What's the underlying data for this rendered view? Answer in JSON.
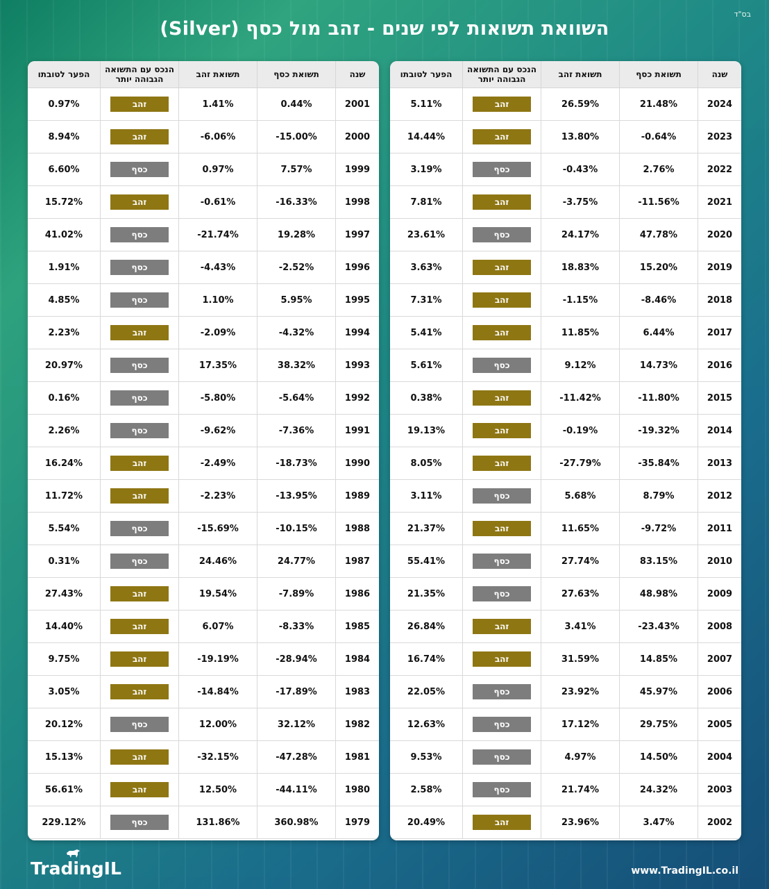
{
  "header": {
    "bsd": "בס\"ד",
    "title": "השוואת תשואות לפי שנים - זהב מול כסף (Silver)"
  },
  "columns": {
    "year": "שנה",
    "silver": "תשואת כסף",
    "gold": "תשואת זהב",
    "winner": "הנכס עם התשואה הגבוהה יותר",
    "gap": "הפער לטובתו"
  },
  "right_table": [
    {
      "year": "2024",
      "silver": "21.48%",
      "gold": "26.59%",
      "winner": "זהב",
      "gap": "5.11%"
    },
    {
      "year": "2023",
      "silver": "-0.64%",
      "gold": "13.80%",
      "winner": "זהב",
      "gap": "14.44%"
    },
    {
      "year": "2022",
      "silver": "2.76%",
      "gold": "-0.43%",
      "winner": "כסף",
      "gap": "3.19%"
    },
    {
      "year": "2021",
      "silver": "-11.56%",
      "gold": "-3.75%",
      "winner": "זהב",
      "gap": "7.81%"
    },
    {
      "year": "2020",
      "silver": "47.78%",
      "gold": "24.17%",
      "winner": "כסף",
      "gap": "23.61%"
    },
    {
      "year": "2019",
      "silver": "15.20%",
      "gold": "18.83%",
      "winner": "זהב",
      "gap": "3.63%"
    },
    {
      "year": "2018",
      "silver": "-8.46%",
      "gold": "-1.15%",
      "winner": "זהב",
      "gap": "7.31%"
    },
    {
      "year": "2017",
      "silver": "6.44%",
      "gold": "11.85%",
      "winner": "זהב",
      "gap": "5.41%"
    },
    {
      "year": "2016",
      "silver": "14.73%",
      "gold": "9.12%",
      "winner": "כסף",
      "gap": "5.61%"
    },
    {
      "year": "2015",
      "silver": "-11.80%",
      "gold": "-11.42%",
      "winner": "זהב",
      "gap": "0.38%"
    },
    {
      "year": "2014",
      "silver": "-19.32%",
      "gold": "-0.19%",
      "winner": "זהב",
      "gap": "19.13%"
    },
    {
      "year": "2013",
      "silver": "-35.84%",
      "gold": "-27.79%",
      "winner": "זהב",
      "gap": "8.05%"
    },
    {
      "year": "2012",
      "silver": "8.79%",
      "gold": "5.68%",
      "winner": "כסף",
      "gap": "3.11%"
    },
    {
      "year": "2011",
      "silver": "-9.72%",
      "gold": "11.65%",
      "winner": "זהב",
      "gap": "21.37%"
    },
    {
      "year": "2010",
      "silver": "83.15%",
      "gold": "27.74%",
      "winner": "כסף",
      "gap": "55.41%"
    },
    {
      "year": "2009",
      "silver": "48.98%",
      "gold": "27.63%",
      "winner": "כסף",
      "gap": "21.35%"
    },
    {
      "year": "2008",
      "silver": "-23.43%",
      "gold": "3.41%",
      "winner": "זהב",
      "gap": "26.84%"
    },
    {
      "year": "2007",
      "silver": "14.85%",
      "gold": "31.59%",
      "winner": "זהב",
      "gap": "16.74%"
    },
    {
      "year": "2006",
      "silver": "45.97%",
      "gold": "23.92%",
      "winner": "כסף",
      "gap": "22.05%"
    },
    {
      "year": "2005",
      "silver": "29.75%",
      "gold": "17.12%",
      "winner": "כסף",
      "gap": "12.63%"
    },
    {
      "year": "2004",
      "silver": "14.50%",
      "gold": "4.97%",
      "winner": "כסף",
      "gap": "9.53%"
    },
    {
      "year": "2003",
      "silver": "24.32%",
      "gold": "21.74%",
      "winner": "כסף",
      "gap": "2.58%"
    },
    {
      "year": "2002",
      "silver": "3.47%",
      "gold": "23.96%",
      "winner": "זהב",
      "gap": "20.49%"
    }
  ],
  "left_table": [
    {
      "year": "2001",
      "silver": "0.44%",
      "gold": "1.41%",
      "winner": "זהב",
      "gap": "0.97%"
    },
    {
      "year": "2000",
      "silver": "-15.00%",
      "gold": "-6.06%",
      "winner": "זהב",
      "gap": "8.94%"
    },
    {
      "year": "1999",
      "silver": "7.57%",
      "gold": "0.97%",
      "winner": "כסף",
      "gap": "6.60%"
    },
    {
      "year": "1998",
      "silver": "-16.33%",
      "gold": "-0.61%",
      "winner": "זהב",
      "gap": "15.72%"
    },
    {
      "year": "1997",
      "silver": "19.28%",
      "gold": "-21.74%",
      "winner": "כסף",
      "gap": "41.02%"
    },
    {
      "year": "1996",
      "silver": "-2.52%",
      "gold": "-4.43%",
      "winner": "כסף",
      "gap": "1.91%"
    },
    {
      "year": "1995",
      "silver": "5.95%",
      "gold": "1.10%",
      "winner": "כסף",
      "gap": "4.85%"
    },
    {
      "year": "1994",
      "silver": "-4.32%",
      "gold": "-2.09%",
      "winner": "זהב",
      "gap": "2.23%"
    },
    {
      "year": "1993",
      "silver": "38.32%",
      "gold": "17.35%",
      "winner": "כסף",
      "gap": "20.97%"
    },
    {
      "year": "1992",
      "silver": "-5.64%",
      "gold": "-5.80%",
      "winner": "כסף",
      "gap": "0.16%"
    },
    {
      "year": "1991",
      "silver": "-7.36%",
      "gold": "-9.62%",
      "winner": "כסף",
      "gap": "2.26%"
    },
    {
      "year": "1990",
      "silver": "-18.73%",
      "gold": "-2.49%",
      "winner": "זהב",
      "gap": "16.24%"
    },
    {
      "year": "1989",
      "silver": "-13.95%",
      "gold": "-2.23%",
      "winner": "זהב",
      "gap": "11.72%"
    },
    {
      "year": "1988",
      "silver": "-10.15%",
      "gold": "-15.69%",
      "winner": "כסף",
      "gap": "5.54%"
    },
    {
      "year": "1987",
      "silver": "24.77%",
      "gold": "24.46%",
      "winner": "כסף",
      "gap": "0.31%"
    },
    {
      "year": "1986",
      "silver": "-7.89%",
      "gold": "19.54%",
      "winner": "זהב",
      "gap": "27.43%"
    },
    {
      "year": "1985",
      "silver": "-8.33%",
      "gold": "6.07%",
      "winner": "זהב",
      "gap": "14.40%"
    },
    {
      "year": "1984",
      "silver": "-28.94%",
      "gold": "-19.19%",
      "winner": "זהב",
      "gap": "9.75%"
    },
    {
      "year": "1983",
      "silver": "-17.89%",
      "gold": "-14.84%",
      "winner": "זהב",
      "gap": "3.05%"
    },
    {
      "year": "1982",
      "silver": "32.12%",
      "gold": "12.00%",
      "winner": "כסף",
      "gap": "20.12%"
    },
    {
      "year": "1981",
      "silver": "-47.28%",
      "gold": "-32.15%",
      "winner": "זהב",
      "gap": "15.13%"
    },
    {
      "year": "1980",
      "silver": "-44.11%",
      "gold": "12.50%",
      "winner": "זהב",
      "gap": "56.61%"
    },
    {
      "year": "1979",
      "silver": "360.98%",
      "gold": "131.86%",
      "winner": "כסף",
      "gap": "229.12%"
    }
  ],
  "colors": {
    "positive": "#2f8a1e",
    "negative": "#cf1f2e",
    "gold_badge": "#8e7613",
    "silver_badge": "#7d7d7d"
  },
  "footer": {
    "logo": "TradingIL",
    "logo_icon": "bull-icon",
    "site": "www.TradingIL.co.il"
  }
}
